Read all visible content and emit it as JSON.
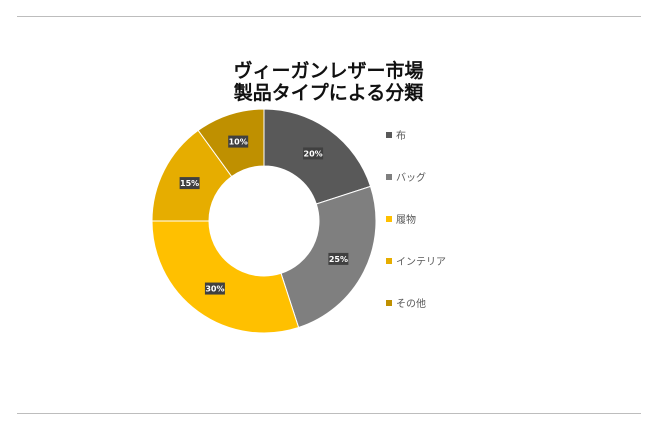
{
  "chart_data": {
    "type": "pie",
    "title_lines": [
      "ヴィーガンレザー市場",
      "製品タイプによる分類"
    ],
    "categories": [
      "布",
      "バッグ",
      "履物",
      "インテリア",
      "その他"
    ],
    "values": [
      20,
      25,
      30,
      15,
      10
    ],
    "data_labels": [
      "20%",
      "25%",
      "30%",
      "15%",
      "10%"
    ],
    "colors": [
      "#595959",
      "#7f7f7f",
      "#ffc000",
      "#e6ad00",
      "#bf9000"
    ],
    "donut": true,
    "legend_position": "right"
  }
}
